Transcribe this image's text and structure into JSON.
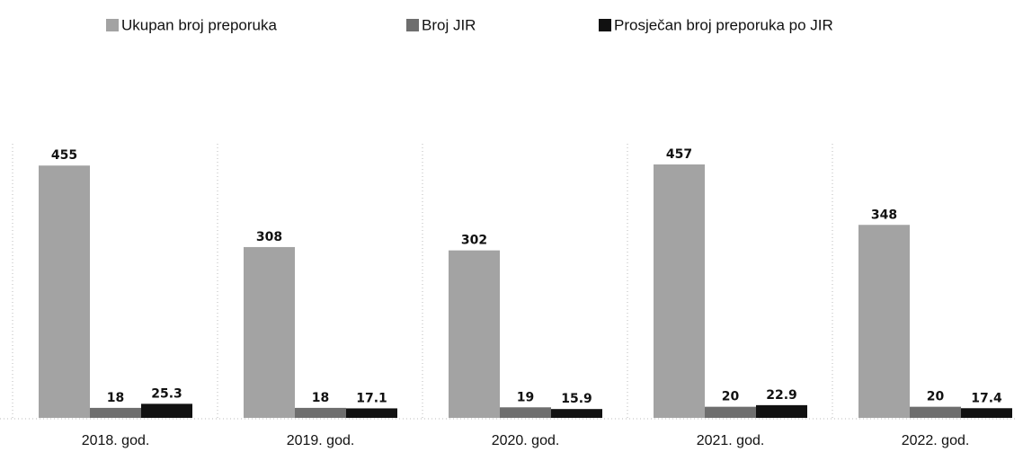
{
  "chart_data": {
    "type": "bar",
    "categories": [
      "2018. god.",
      "2019. god.",
      "2020. god.",
      "2021. god.",
      "2022. god."
    ],
    "series": [
      {
        "name": "Ukupan broj preporuka",
        "color": "#a3a3a3",
        "values": [
          455,
          308,
          302,
          457,
          348
        ]
      },
      {
        "name": "Broj JIR",
        "color": "#6e6e6e",
        "values": [
          18,
          18,
          19,
          20,
          20
        ]
      },
      {
        "name": "Prosječan broj preporuka po JIR",
        "color": "#111111",
        "values": [
          25.3,
          17.1,
          15.9,
          22.9,
          17.4
        ]
      }
    ]
  }
}
